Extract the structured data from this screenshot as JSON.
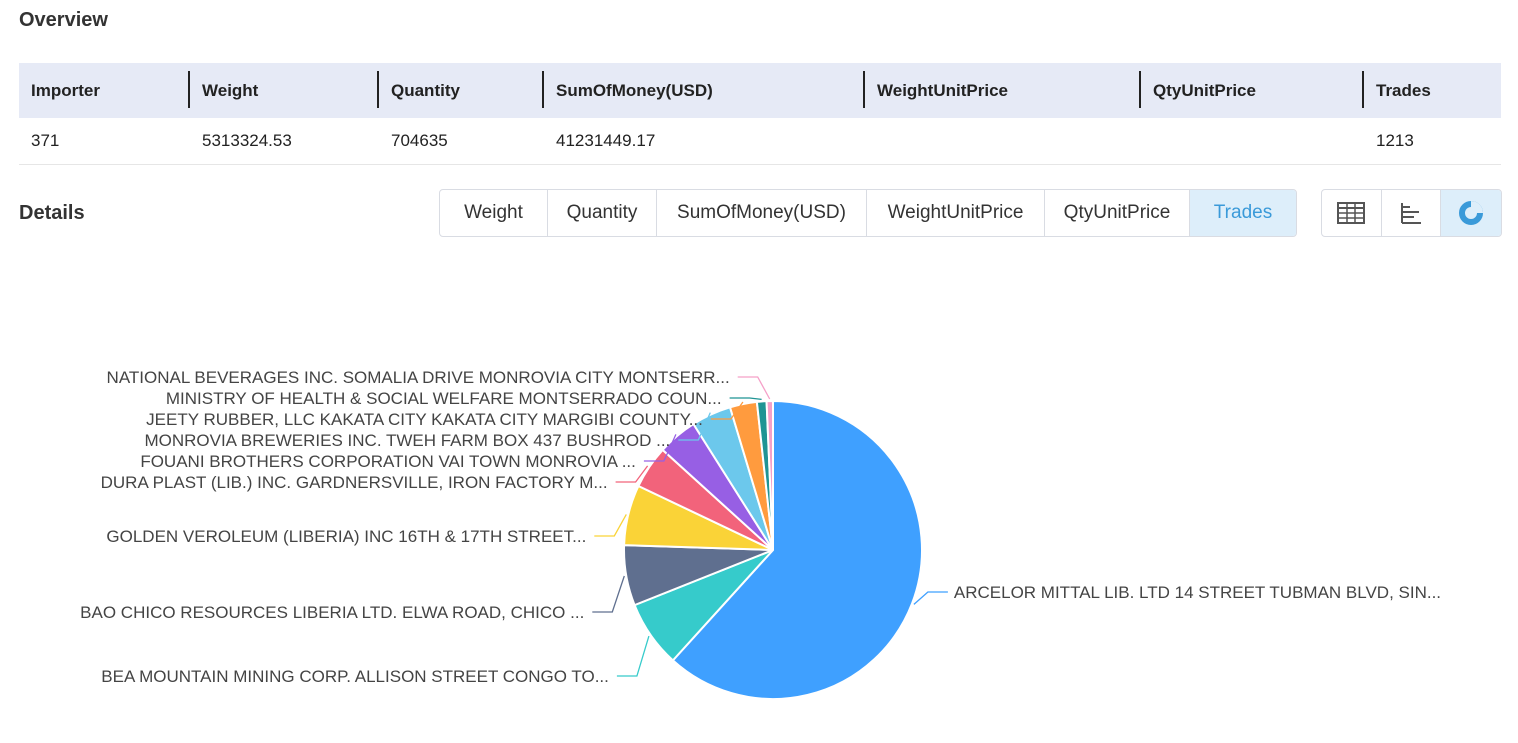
{
  "overview": {
    "title": "Overview",
    "headers": [
      "Importer",
      "Weight",
      "Quantity",
      "SumOfMoney(USD)",
      "WeightUnitPrice",
      "QtyUnitPrice",
      "Trades"
    ],
    "row": [
      "371",
      "5313324.53",
      "704635",
      "41231449.17",
      "",
      "",
      "1213"
    ]
  },
  "details": {
    "title": "Details",
    "metric_tabs": [
      "Weight",
      "Quantity",
      "SumOfMoney(USD)",
      "WeightUnitPrice",
      "QtyUnitPrice",
      "Trades"
    ],
    "active_metric": "Trades",
    "view_tabs": [
      {
        "icon": "table-icon"
      },
      {
        "icon": "bar-chart-icon"
      },
      {
        "icon": "pie-chart-icon",
        "active": true
      }
    ]
  },
  "chart_data": {
    "type": "pie",
    "title": "",
    "categories": [
      "ARCELOR MITTAL LIB. LTD 14 STREET TUBMAN BLVD, SIN...",
      "BEA MOUNTAIN MINING CORP. ALLISON STREET CONGO TO...",
      "BAO CHICO RESOURCES LIBERIA LTD. ELWA ROAD, CHICO ...",
      "GOLDEN VEROLEUM (LIBERIA) INC 16TH & 17TH STREET...",
      "DURA PLAST (LIB.) INC. GARDNERSVILLE, IRON FACTORY M...",
      "FOUANI BROTHERS CORPORATION VAI TOWN MONROVIA ...",
      "MONROVIA BREWERIES INC. TWEH FARM BOX 437 BUSHROD ...",
      "JEETY RUBBER, LLC KAKATA CITY KAKATA CITY MARGIBI COUNTY...",
      "MINISTRY OF HEALTH & SOCIAL WELFARE MONTSERRADO COUN...",
      "NATIONAL BEVERAGES INC. SOMALIA DRIVE MONROVIA CITY MONTSERR..."
    ],
    "values": [
      358,
      42,
      38,
      38,
      27,
      25,
      25,
      17,
      6,
      4
    ],
    "colors": [
      "#3fa0ff",
      "#36cbcb",
      "#5f6f8f",
      "#fad337",
      "#f2637b",
      "#975fe4",
      "#6cc8ec",
      "#ff9b3e",
      "#1f9494",
      "#f5a0c8"
    ]
  }
}
